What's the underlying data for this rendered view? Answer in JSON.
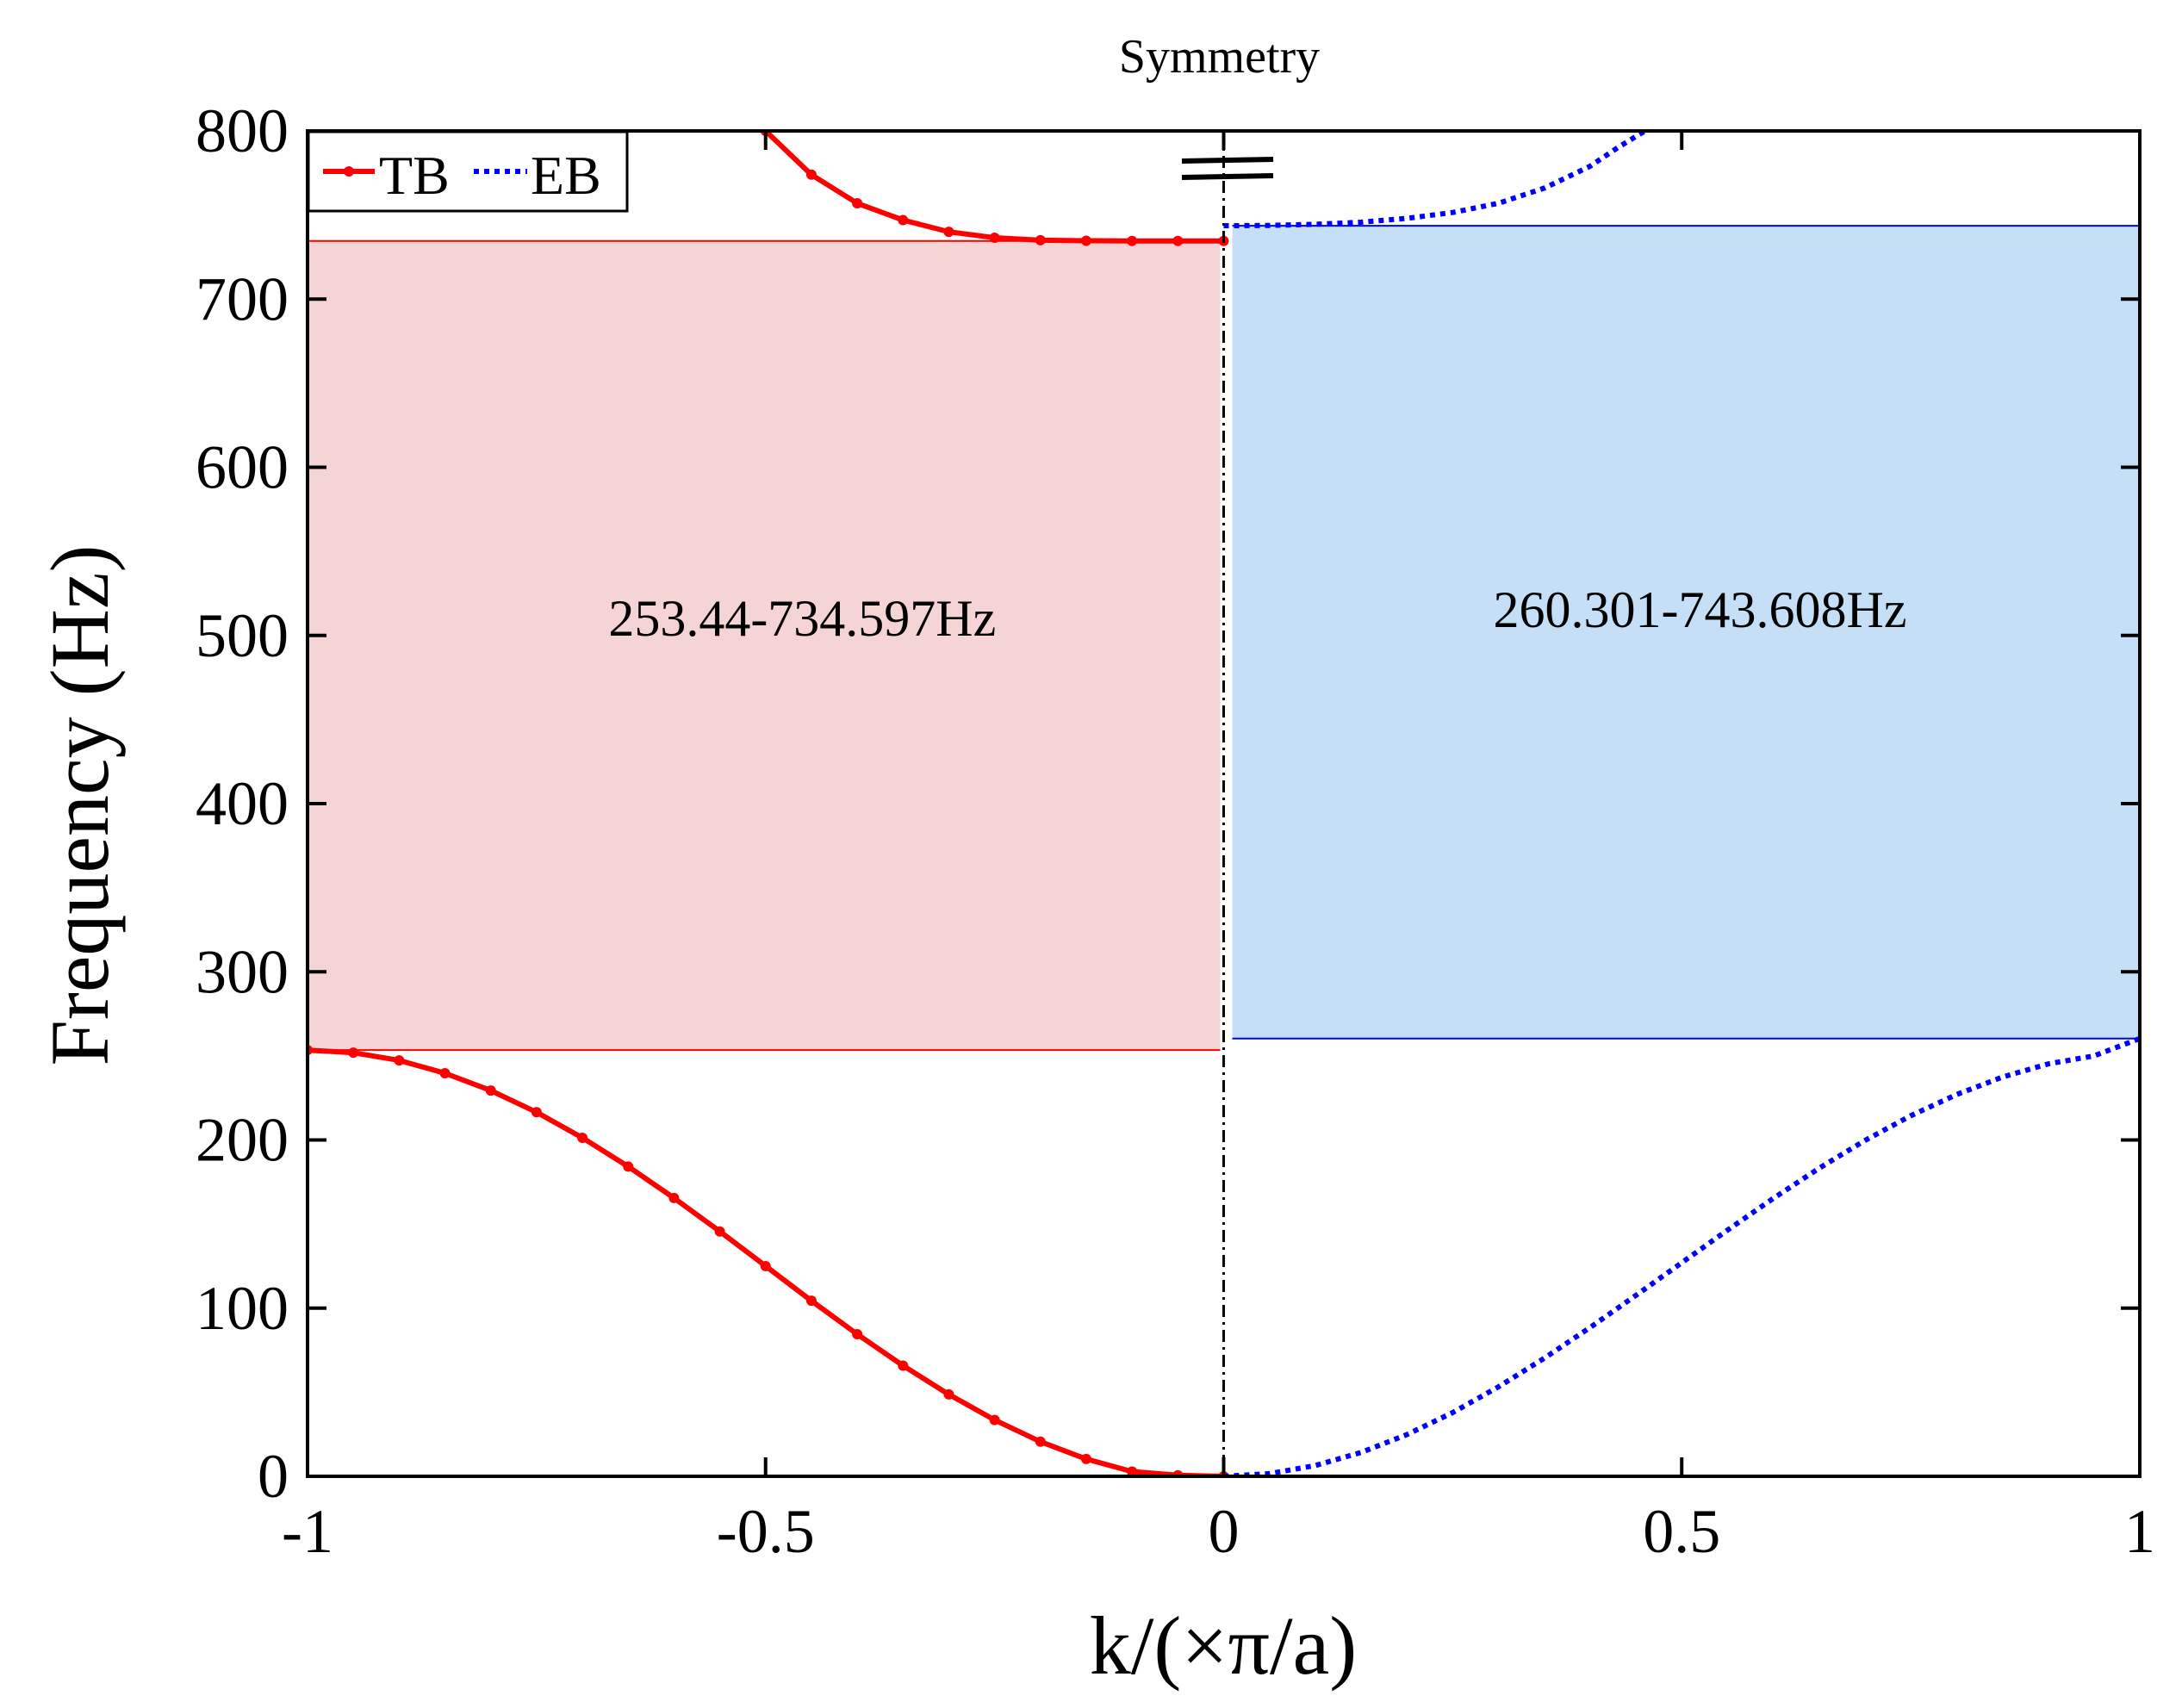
{
  "chart_data": {
    "type": "line",
    "title": "",
    "xlabel": "k/(×π/a)",
    "ylabel": "Frequency (Hz)",
    "xlim": [
      -1,
      1
    ],
    "ylim": [
      0,
      800
    ],
    "x_ticks": [
      {
        "value": -1,
        "label": "-1"
      },
      {
        "value": -0.5,
        "label": "-0.5"
      },
      {
        "value": 0,
        "label": "0"
      },
      {
        "value": 0.5,
        "label": "0.5"
      },
      {
        "value": 1,
        "label": "1"
      }
    ],
    "y_ticks": [
      {
        "value": 0,
        "label": "0"
      },
      {
        "value": 100,
        "label": "100"
      },
      {
        "value": 200,
        "label": "200"
      },
      {
        "value": 300,
        "label": "300"
      },
      {
        "value": 400,
        "label": "400"
      },
      {
        "value": 500,
        "label": "500"
      },
      {
        "value": 600,
        "label": "600"
      },
      {
        "value": 700,
        "label": "700"
      },
      {
        "value": 800,
        "label": "800"
      }
    ],
    "symmetry_label": "Symmetry",
    "symmetry_x": 0,
    "legend": {
      "position": "top-left",
      "entries": [
        {
          "label": "TB",
          "color": "#ff0000",
          "style": "solid-marker"
        },
        {
          "label": "EB",
          "color": "#0000ff",
          "style": "dotted"
        }
      ]
    },
    "bandgaps": [
      {
        "name": "TB gap",
        "x_range": [
          -1,
          0
        ],
        "y_range": [
          253.44,
          734.597
        ],
        "fill": "#f4d4d5",
        "edge": "#ff0000",
        "label": "253.44-734.597Hz",
        "label_pos": [
          -0.46,
          500
        ]
      },
      {
        "name": "EB gap",
        "x_range": [
          0,
          1
        ],
        "y_range": [
          260.301,
          743.608
        ],
        "fill": "#c5e0f6",
        "edge": "#0000ff",
        "label": "260.301-743.608Hz",
        "label_pos": [
          0.52,
          505
        ]
      }
    ],
    "series": [
      {
        "name": "TB lower band",
        "color": "#ff0000",
        "x": [
          -1,
          -0.95,
          -0.9,
          -0.85,
          -0.8,
          -0.75,
          -0.7,
          -0.65,
          -0.6,
          -0.55,
          -0.5,
          -0.45,
          -0.4,
          -0.35,
          -0.3,
          -0.25,
          -0.2,
          -0.15,
          -0.1,
          -0.05,
          0
        ],
        "values": [
          253.44,
          251.9,
          247.3,
          239.7,
          229.4,
          216.5,
          201.3,
          184.2,
          165.5,
          145.6,
          125.0,
          104.4,
          84.5,
          65.8,
          48.7,
          33.5,
          20.6,
          10.3,
          2.8,
          0.6,
          0
        ]
      },
      {
        "name": "TB upper band",
        "color": "#ff0000",
        "x": [
          -0.5,
          -0.45,
          -0.4,
          -0.35,
          -0.3,
          -0.25,
          -0.2,
          -0.15,
          -0.1,
          -0.05,
          0
        ],
        "values": [
          800,
          774,
          757,
          747,
          740,
          736.5,
          735,
          734.7,
          734.6,
          734.6,
          734.597
        ]
      },
      {
        "name": "EB lower band",
        "color": "#0000ff",
        "x": [
          0,
          0.05,
          0.1,
          0.15,
          0.2,
          0.25,
          0.3,
          0.35,
          0.4,
          0.45,
          0.5,
          0.55,
          0.6,
          0.65,
          0.7,
          0.75,
          0.8,
          0.85,
          0.9,
          0.95,
          1
        ],
        "values": [
          0,
          1.6,
          6.4,
          14.2,
          24.8,
          37.9,
          53.2,
          70.2,
          88.5,
          107.6,
          127.0,
          146.4,
          165.3,
          183.2,
          199.7,
          214.4,
          227.0,
          237.4,
          245.2,
          250.0,
          260.301
        ]
      },
      {
        "name": "EB upper band",
        "color": "#0000ff",
        "x": [
          0,
          0.05,
          0.1,
          0.15,
          0.2,
          0.25,
          0.3,
          0.35,
          0.4,
          0.43,
          0.46
        ],
        "values": [
          743.608,
          743.8,
          744.5,
          745.7,
          748,
          751.5,
          757,
          766,
          779,
          790,
          800
        ]
      }
    ]
  }
}
